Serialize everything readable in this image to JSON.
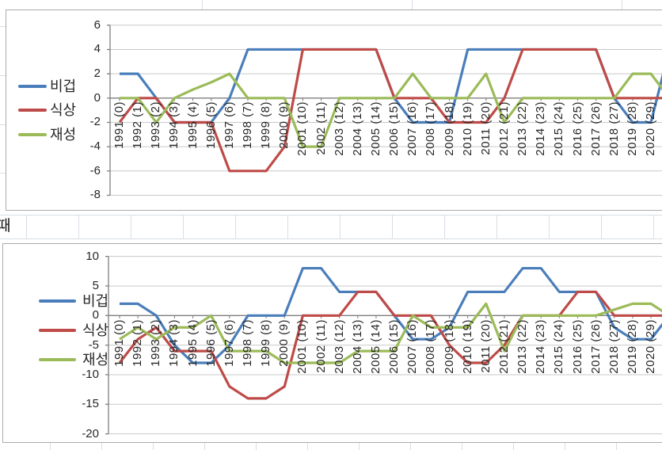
{
  "sheet": {
    "middle_cell_text": "때"
  },
  "colors": {
    "series_blue": "#4a7ebb",
    "series_red": "#be4b48",
    "series_green": "#9bbb59",
    "gridline": "#c9c9c9",
    "axis_line": "#7f7f7f",
    "chart_border": "#ababab",
    "sheet_grid": "#d9dee5",
    "label_text": "#262626"
  },
  "chart_data": [
    {
      "type": "line",
      "title": "",
      "legend_position": "left",
      "grid": true,
      "ylim": [
        -8,
        6
      ],
      "ytick_step": 2,
      "ytick_labels": [
        "6",
        "4",
        "2",
        "0",
        "-2",
        "-4",
        "-6",
        "-8"
      ],
      "categories": [
        "1991 (0)",
        "1992 (1)",
        "1993 (2)",
        "1994 (3)",
        "1995 (4)",
        "1996 (5)",
        "1997 (6)",
        "1998 (7)",
        "1999 (8)",
        "2000 (9)",
        "2001 (10)",
        "2002 (11)",
        "2003 (12)",
        "2004 (13)",
        "2005 (14)",
        "2006 (15)",
        "2007 (16)",
        "2008 (17)",
        "2009 (18)",
        "2010 (19)",
        "2011 (20)",
        "2012 (21)",
        "2013 (22)",
        "2014 (23)",
        "2015 (24)",
        "2016 (25)",
        "2017 (26)",
        "2018 (27)",
        "2019 (28)",
        "2020 (29)"
      ],
      "series": [
        {
          "name": "비겁",
          "color": "#4a7ebb",
          "values": [
            2,
            2,
            0,
            -2,
            -2,
            -2,
            0,
            4,
            4,
            4,
            4,
            4,
            4,
            4,
            4,
            0,
            -2,
            -2,
            -2,
            4,
            4,
            4,
            4,
            4,
            4,
            4,
            4,
            0,
            -2,
            -2
          ],
          "clipped_next": 4
        },
        {
          "name": "식상",
          "color": "#be4b48",
          "values": [
            -2,
            0,
            0,
            -2,
            -2,
            -2,
            -6,
            -6,
            -6,
            -4,
            4,
            4,
            4,
            4,
            4,
            0,
            0,
            0,
            -2,
            -2,
            -2,
            0,
            4,
            4,
            4,
            4,
            4,
            0,
            0,
            0
          ],
          "clipped_next": 0
        },
        {
          "name": "재성",
          "color": "#9bbb59",
          "values": [
            0,
            0,
            -2,
            0,
            0.7,
            1.3,
            2,
            0,
            0,
            0,
            -4,
            -4,
            0,
            0,
            0,
            0,
            2,
            0,
            0,
            0,
            2,
            -2,
            0,
            0,
            0,
            0,
            0,
            0,
            2,
            2
          ],
          "clipped_next": 0
        }
      ]
    },
    {
      "type": "line",
      "title": "",
      "legend_position": "left",
      "grid": true,
      "ylim": [
        -20,
        10
      ],
      "ytick_step": 5,
      "ytick_labels": [
        "10",
        "5",
        "0",
        "-5",
        "-10",
        "-15",
        "-20"
      ],
      "categories": [
        "1991 (0)",
        "1992 (1)",
        "1993 (2)",
        "1994 (3)",
        "1995 (4)",
        "1996 (5)",
        "1997 (6)",
        "1998 (7)",
        "1999 (8)",
        "2000 (9)",
        "2001 (10)",
        "2002 (11)",
        "2003 (12)",
        "2004 (13)",
        "2005 (14)",
        "2006 (15)",
        "2007 (16)",
        "2008 (17)",
        "2009 (18)",
        "2010 (19)",
        "2011 (20)",
        "2012 (21)",
        "2013 (22)",
        "2014 (23)",
        "2015 (24)",
        "2016 (25)",
        "2017 (26)",
        "2018 (27)",
        "2019 (28)",
        "2020 (29)"
      ],
      "series": [
        {
          "name": "비겁",
          "color": "#4a7ebb",
          "values": [
            2,
            2,
            0,
            -5,
            -8,
            -8,
            -5,
            0,
            0,
            0,
            8,
            8,
            4,
            4,
            4,
            0,
            -4,
            -4,
            -2,
            4,
            4,
            4,
            8,
            8,
            4,
            4,
            4,
            -2,
            -4,
            -4
          ],
          "clipped_next": 0
        },
        {
          "name": "식상",
          "color": "#be4b48",
          "values": [
            -8,
            -4,
            -2,
            -6,
            -6,
            -6,
            -12,
            -14,
            -14,
            -12,
            0,
            0,
            0,
            4,
            4,
            0,
            0,
            0,
            -5,
            -8,
            -8,
            -5,
            0,
            0,
            0,
            4,
            4,
            0,
            0,
            0
          ],
          "clipped_next": 0
        },
        {
          "name": "재성",
          "color": "#9bbb59",
          "values": [
            -4,
            -2,
            -4,
            -2,
            -2,
            0,
            -6,
            -6,
            -6,
            -8,
            -8,
            -8,
            -8,
            -6,
            -6,
            -6,
            0,
            -2,
            -2,
            -2,
            2,
            -6,
            0,
            0,
            0,
            0,
            0,
            1,
            2,
            2
          ],
          "clipped_next": 0
        }
      ]
    }
  ]
}
